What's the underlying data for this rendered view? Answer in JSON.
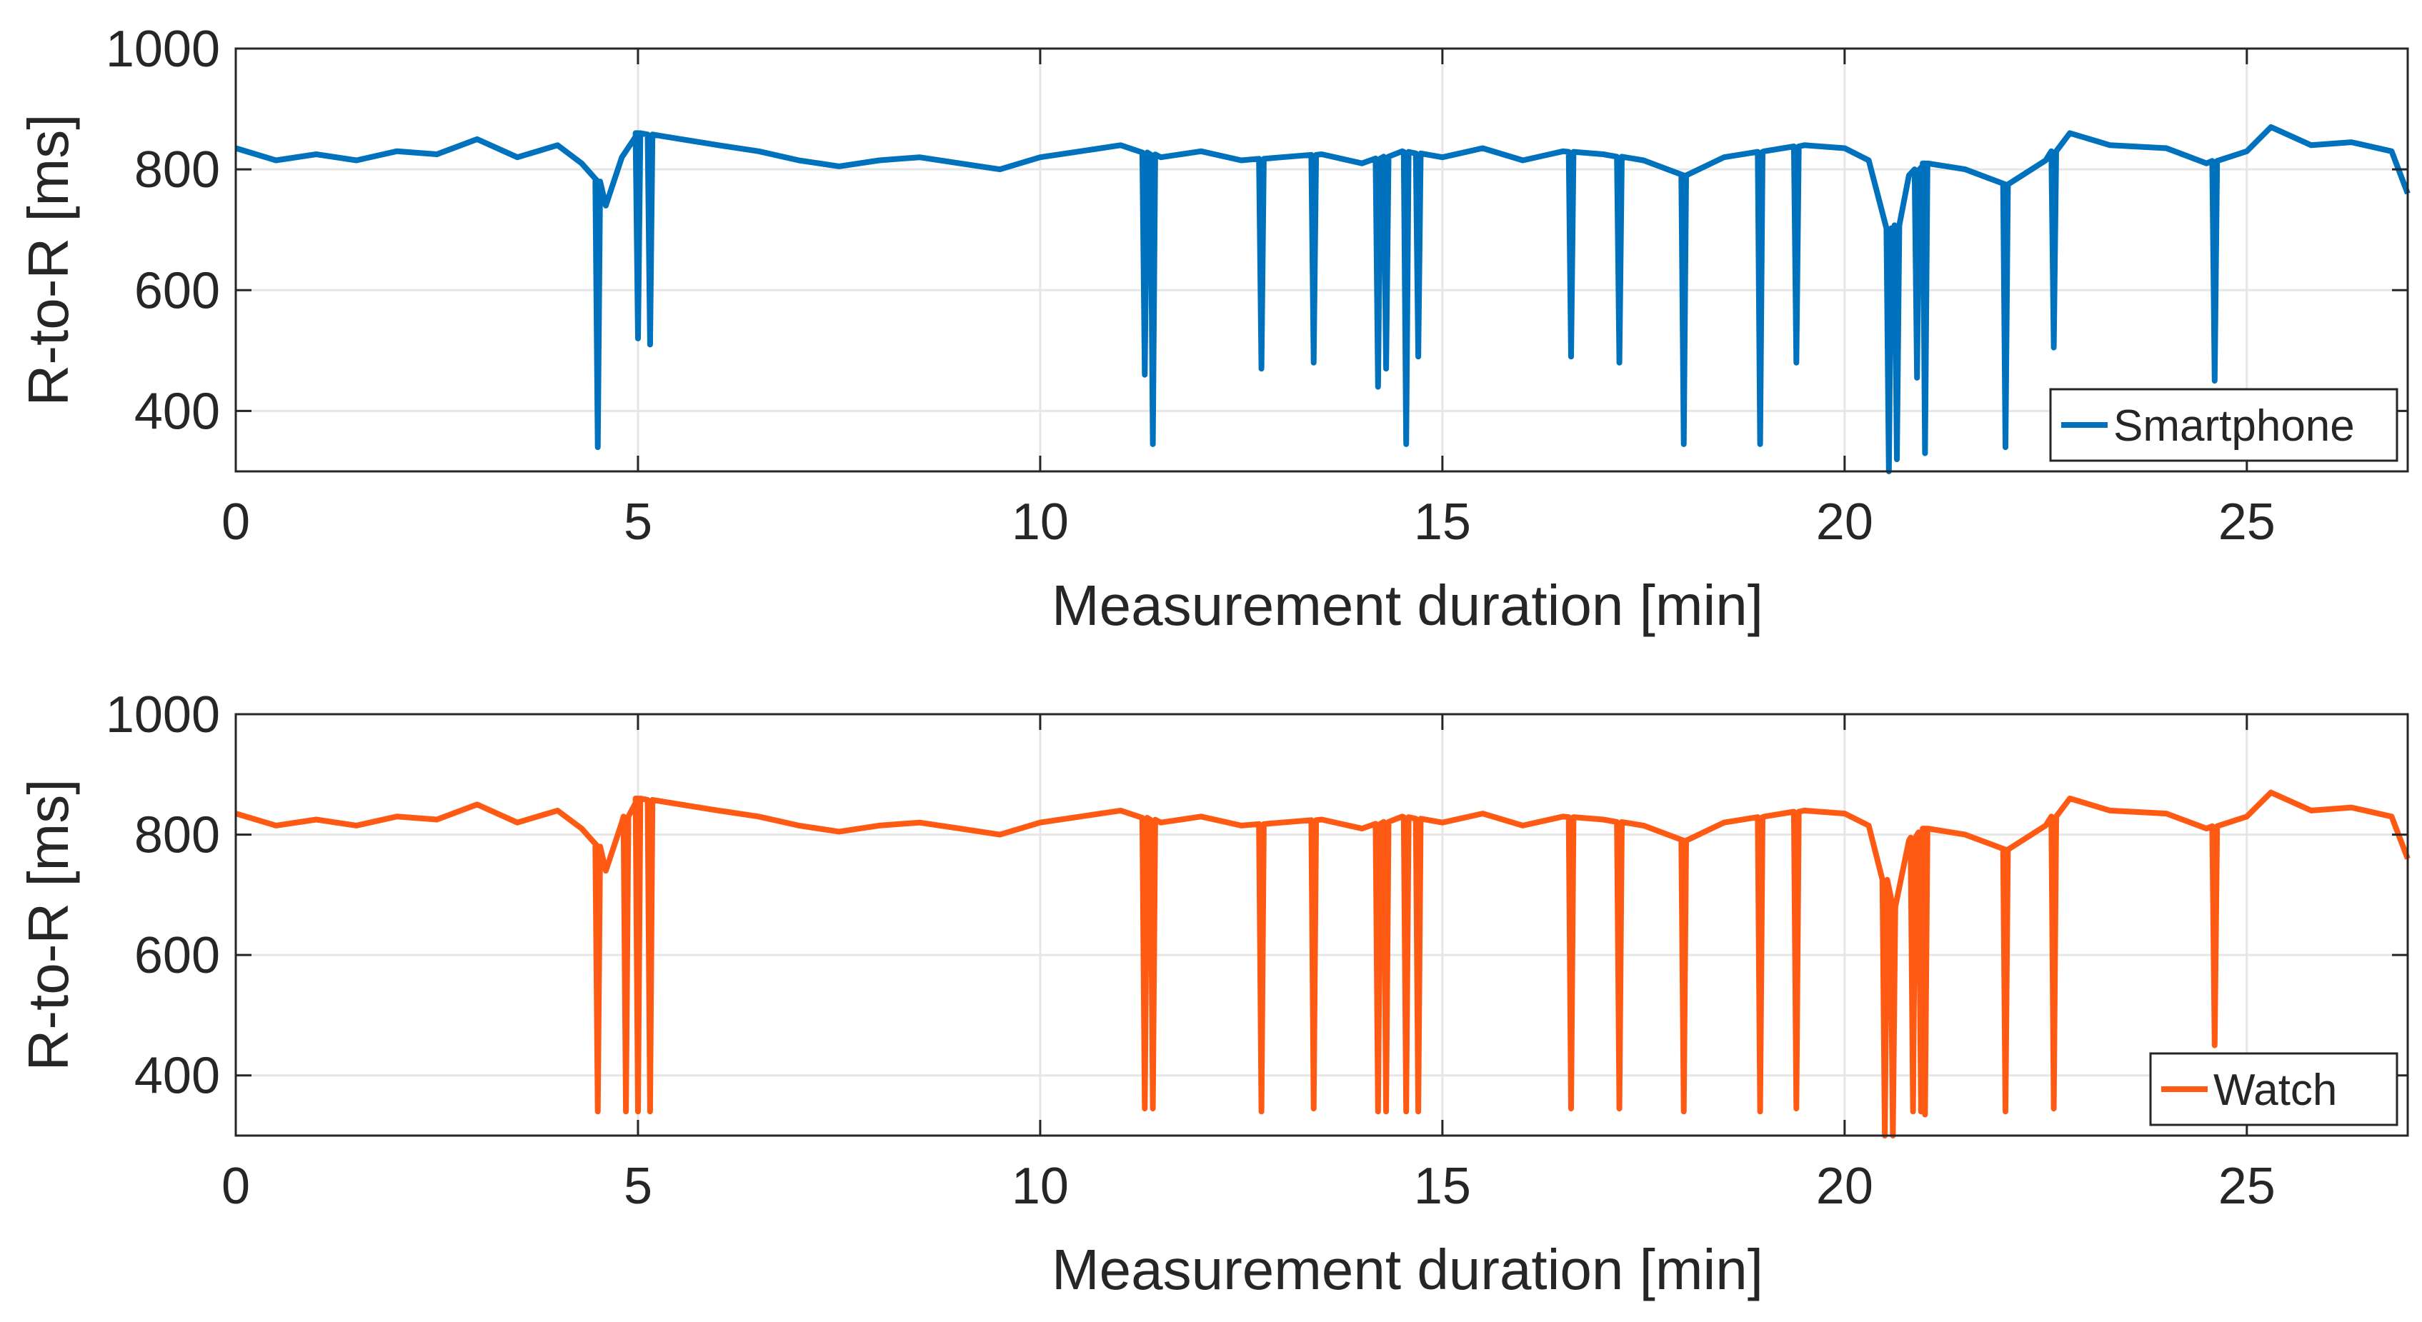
{
  "chart_data": [
    {
      "type": "line",
      "title": "",
      "xlabel": "Measurement duration [min]",
      "ylabel": "R-to-R [ms]",
      "xlim": [
        0,
        27
      ],
      "ylim": [
        300,
        1000
      ],
      "xticks": [
        0,
        5,
        10,
        15,
        20,
        25
      ],
      "yticks": [
        400,
        600,
        800,
        1000
      ],
      "grid": true,
      "legend_position": "bottom-right",
      "series": [
        {
          "name": "Smartphone",
          "color": "#0072BD",
          "baseline": [
            [
              0,
              835
            ],
            [
              0.5,
              815
            ],
            [
              1,
              825
            ],
            [
              1.5,
              815
            ],
            [
              2,
              830
            ],
            [
              2.5,
              825
            ],
            [
              3,
              850
            ],
            [
              3.5,
              820
            ],
            [
              4,
              840
            ],
            [
              4.3,
              810
            ],
            [
              4.5,
              780
            ],
            [
              4.6,
              740
            ],
            [
              4.8,
              820
            ],
            [
              5,
              860
            ],
            [
              5.3,
              855
            ],
            [
              6,
              840
            ],
            [
              6.5,
              830
            ],
            [
              7,
              815
            ],
            [
              7.5,
              805
            ],
            [
              8,
              815
            ],
            [
              8.5,
              820
            ],
            [
              9,
              810
            ],
            [
              9.5,
              800
            ],
            [
              10,
              820
            ],
            [
              10.5,
              830
            ],
            [
              11,
              840
            ],
            [
              11.5,
              820
            ],
            [
              12,
              830
            ],
            [
              12.5,
              815
            ],
            [
              13,
              820
            ],
            [
              13.5,
              825
            ],
            [
              14,
              810
            ],
            [
              14.5,
              830
            ],
            [
              15,
              820
            ],
            [
              15.5,
              835
            ],
            [
              16,
              815
            ],
            [
              16.5,
              830
            ],
            [
              17,
              825
            ],
            [
              17.5,
              815
            ],
            [
              18,
              790
            ],
            [
              18.5,
              820
            ],
            [
              19,
              830
            ],
            [
              19.5,
              840
            ],
            [
              20,
              835
            ],
            [
              20.3,
              815
            ],
            [
              20.6,
              680
            ],
            [
              20.8,
              790
            ],
            [
              21,
              810
            ],
            [
              21.5,
              800
            ],
            [
              22,
              775
            ],
            [
              22.5,
              815
            ],
            [
              22.8,
              860
            ],
            [
              23.3,
              840
            ],
            [
              24,
              835
            ],
            [
              24.5,
              810
            ],
            [
              25,
              830
            ],
            [
              25.3,
              870
            ],
            [
              25.8,
              840
            ],
            [
              26.3,
              845
            ],
            [
              26.8,
              830
            ],
            [
              27,
              760
            ]
          ],
          "spikes": [
            [
              4.5,
              340
            ],
            [
              5.0,
              520
            ],
            [
              5.15,
              510
            ],
            [
              11.3,
              460
            ],
            [
              11.4,
              345
            ],
            [
              12.75,
              470
            ],
            [
              13.4,
              480
            ],
            [
              14.2,
              440
            ],
            [
              14.3,
              470
            ],
            [
              14.55,
              345
            ],
            [
              14.7,
              490
            ],
            [
              16.6,
              490
            ],
            [
              17.2,
              480
            ],
            [
              18.0,
              345
            ],
            [
              18.95,
              345
            ],
            [
              19.4,
              480
            ],
            [
              20.55,
              300
            ],
            [
              20.65,
              320
            ],
            [
              20.9,
              455
            ],
            [
              21.0,
              330
            ],
            [
              22.0,
              340
            ],
            [
              22.6,
              505
            ],
            [
              24.6,
              450
            ]
          ]
        }
      ]
    },
    {
      "type": "line",
      "title": "",
      "xlabel": "Measurement duration [min]",
      "ylabel": "R-to-R [ms]",
      "xlim": [
        0,
        27
      ],
      "ylim": [
        300,
        1000
      ],
      "xticks": [
        0,
        5,
        10,
        15,
        20,
        25
      ],
      "yticks": [
        400,
        600,
        800,
        1000
      ],
      "grid": true,
      "legend_position": "bottom-right",
      "series": [
        {
          "name": "Watch",
          "color": "#FF5A14",
          "baseline": [
            [
              0,
              835
            ],
            [
              0.5,
              815
            ],
            [
              1,
              825
            ],
            [
              1.5,
              815
            ],
            [
              2,
              830
            ],
            [
              2.5,
              825
            ],
            [
              3,
              850
            ],
            [
              3.5,
              820
            ],
            [
              4,
              840
            ],
            [
              4.3,
              810
            ],
            [
              4.5,
              780
            ],
            [
              4.6,
              740
            ],
            [
              4.8,
              820
            ],
            [
              5,
              860
            ],
            [
              5.3,
              855
            ],
            [
              6,
              840
            ],
            [
              6.5,
              830
            ],
            [
              7,
              815
            ],
            [
              7.5,
              805
            ],
            [
              8,
              815
            ],
            [
              8.5,
              820
            ],
            [
              9,
              810
            ],
            [
              9.5,
              800
            ],
            [
              10,
              820
            ],
            [
              10.5,
              830
            ],
            [
              11,
              840
            ],
            [
              11.5,
              820
            ],
            [
              12,
              830
            ],
            [
              12.5,
              815
            ],
            [
              13,
              820
            ],
            [
              13.5,
              825
            ],
            [
              14,
              810
            ],
            [
              14.5,
              830
            ],
            [
              15,
              820
            ],
            [
              15.5,
              835
            ],
            [
              16,
              815
            ],
            [
              16.5,
              830
            ],
            [
              17,
              825
            ],
            [
              17.5,
              815
            ],
            [
              18,
              790
            ],
            [
              18.5,
              820
            ],
            [
              19,
              830
            ],
            [
              19.5,
              840
            ],
            [
              20,
              835
            ],
            [
              20.3,
              815
            ],
            [
              20.6,
              680
            ],
            [
              20.8,
              790
            ],
            [
              21,
              810
            ],
            [
              21.5,
              800
            ],
            [
              22,
              775
            ],
            [
              22.5,
              815
            ],
            [
              22.8,
              860
            ],
            [
              23.3,
              840
            ],
            [
              24,
              835
            ],
            [
              24.5,
              810
            ],
            [
              25,
              830
            ],
            [
              25.3,
              870
            ],
            [
              25.8,
              840
            ],
            [
              26.3,
              845
            ],
            [
              26.8,
              830
            ],
            [
              27,
              760
            ]
          ],
          "spikes": [
            [
              4.5,
              340
            ],
            [
              4.85,
              340
            ],
            [
              5.0,
              340
            ],
            [
              5.15,
              340
            ],
            [
              11.3,
              345
            ],
            [
              11.4,
              345
            ],
            [
              12.75,
              340
            ],
            [
              13.4,
              345
            ],
            [
              14.2,
              340
            ],
            [
              14.3,
              340
            ],
            [
              14.55,
              340
            ],
            [
              14.7,
              340
            ],
            [
              16.6,
              345
            ],
            [
              17.2,
              345
            ],
            [
              18.0,
              340
            ],
            [
              18.95,
              340
            ],
            [
              19.4,
              345
            ],
            [
              20.5,
              300
            ],
            [
              20.6,
              300
            ],
            [
              20.85,
              340
            ],
            [
              20.95,
              340
            ],
            [
              21.0,
              335
            ],
            [
              22.0,
              340
            ],
            [
              22.6,
              345
            ],
            [
              24.6,
              450
            ]
          ]
        }
      ]
    }
  ]
}
